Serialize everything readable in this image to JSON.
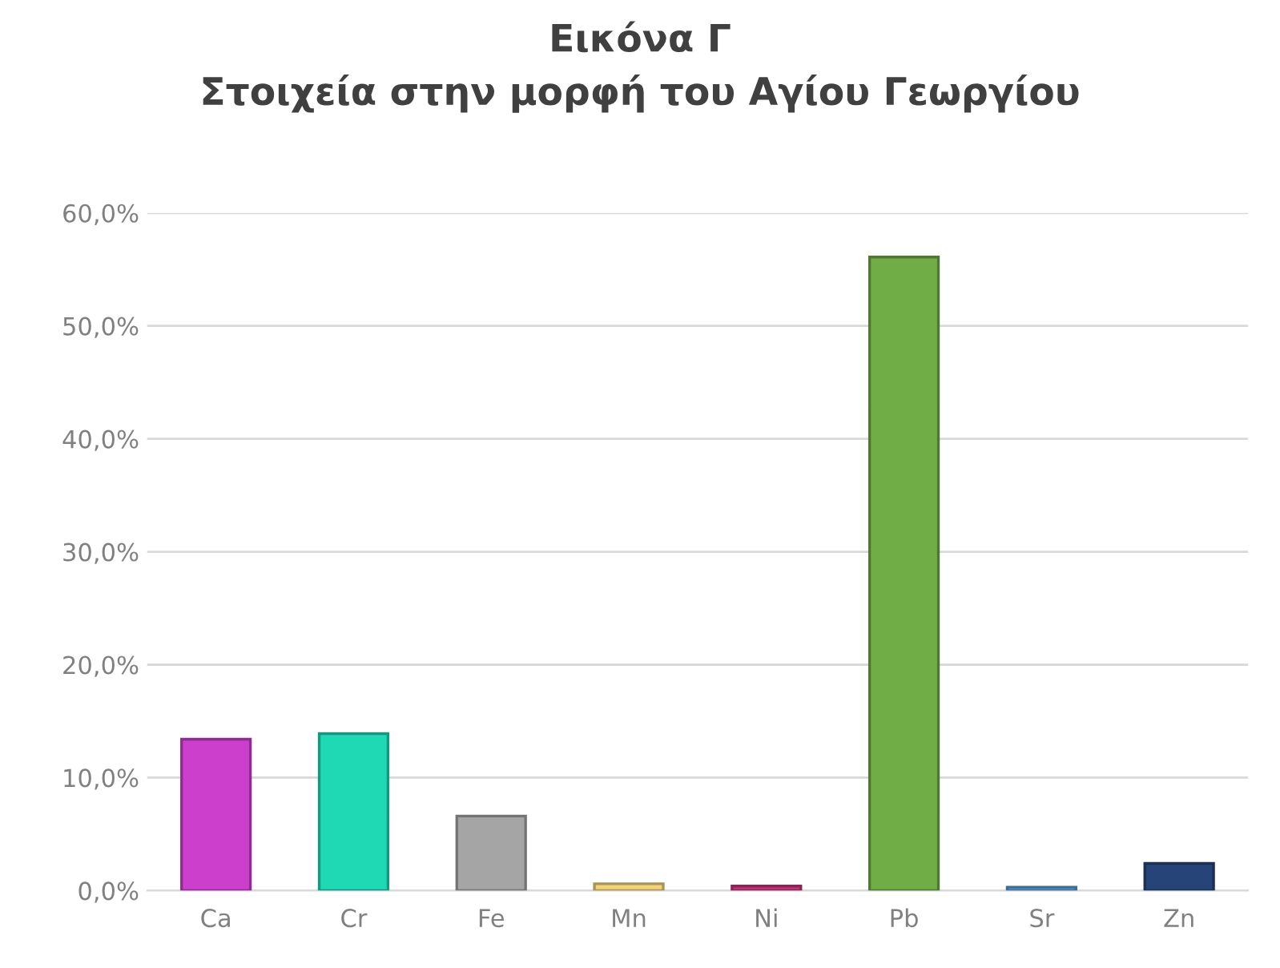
{
  "chart_data": {
    "type": "bar",
    "title": "Εικόνα Γ\nΣτοιχεία στην μορφή του Αγίου Γεωργίου",
    "categories": [
      "Ca",
      "Cr",
      "Fe",
      "Mn",
      "Ni",
      "Pb",
      "Sr",
      "Zn"
    ],
    "values": [
      13.4,
      13.9,
      6.6,
      0.6,
      0.4,
      56.1,
      0.3,
      2.4
    ],
    "colors": [
      "#cc3fcc",
      "#1fd9b5",
      "#a5a5a5",
      "#f2d27a",
      "#c2377a",
      "#70ad47",
      "#5b9bd5",
      "#264478"
    ],
    "ylim": [
      0,
      60
    ],
    "yticks": [
      {
        "value": 0,
        "label": "0,0%"
      },
      {
        "value": 10,
        "label": "10,0%"
      },
      {
        "value": 20,
        "label": "20,0%"
      },
      {
        "value": 30,
        "label": "30,0%"
      },
      {
        "value": 40,
        "label": "40,0%"
      },
      {
        "value": 50,
        "label": "50,0%"
      },
      {
        "value": 60,
        "label": "60,0%"
      }
    ],
    "grid": "y",
    "legend": false
  }
}
